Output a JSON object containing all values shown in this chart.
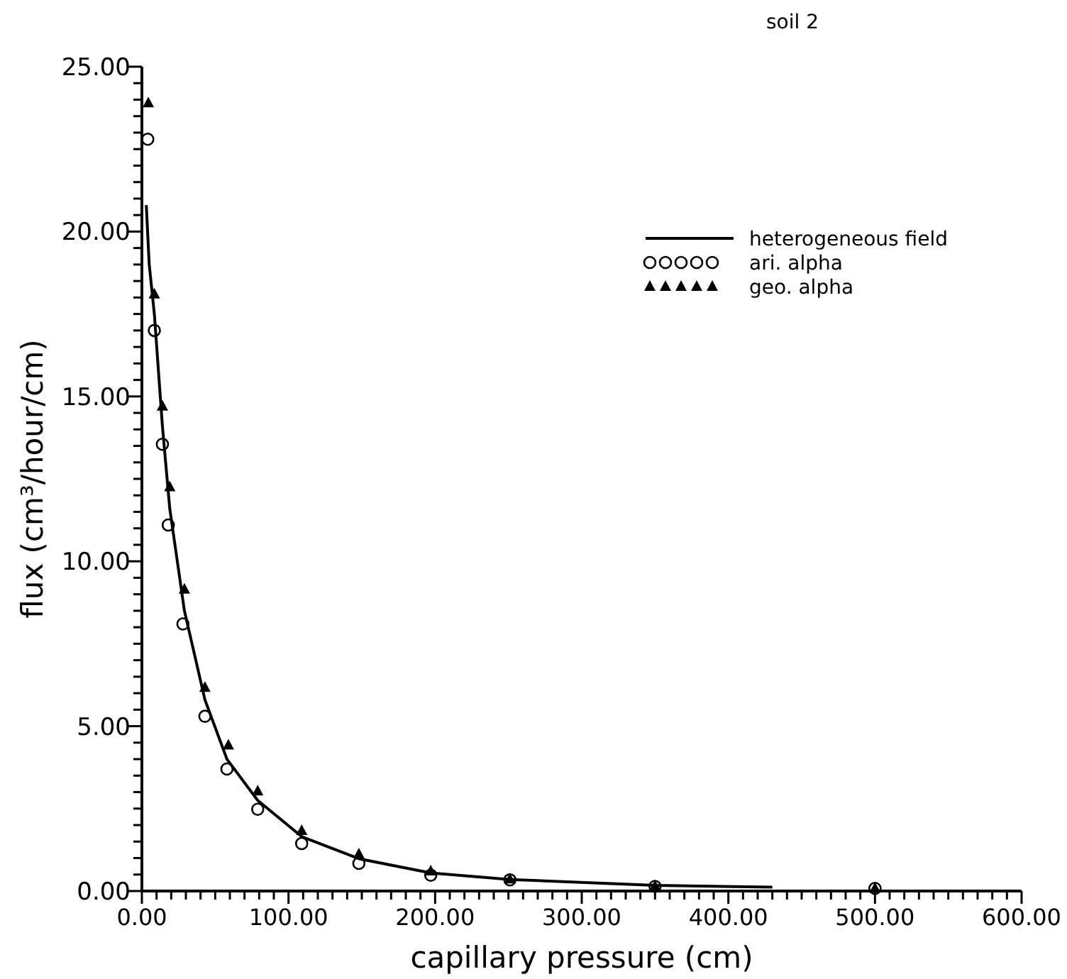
{
  "chart_data": {
    "type": "scatter",
    "xlabel": "capillary pressure (cm)",
    "ylabel": "flux (cm³/hour/cm)",
    "annotations": [
      "soil 2"
    ],
    "xlim": [
      0,
      600
    ],
    "ylim": [
      0,
      25
    ],
    "xticks": [
      {
        "value": 0,
        "label": "0.00"
      },
      {
        "value": 10,
        "label": null
      },
      {
        "value": 20,
        "label": null
      },
      {
        "value": 30,
        "label": null
      },
      {
        "value": 40,
        "label": null
      },
      {
        "value": 50,
        "label": null
      },
      {
        "value": 60,
        "label": null
      },
      {
        "value": 70,
        "label": null
      },
      {
        "value": 80,
        "label": null
      },
      {
        "value": 90,
        "label": null
      },
      {
        "value": 100,
        "label": "100.00"
      },
      {
        "value": 110,
        "label": null
      },
      {
        "value": 120,
        "label": null
      },
      {
        "value": 130,
        "label": null
      },
      {
        "value": 140,
        "label": null
      },
      {
        "value": 150,
        "label": null
      },
      {
        "value": 160,
        "label": null
      },
      {
        "value": 170,
        "label": null
      },
      {
        "value": 180,
        "label": null
      },
      {
        "value": 190,
        "label": null
      },
      {
        "value": 200,
        "label": "200.00"
      },
      {
        "value": 210,
        "label": null
      },
      {
        "value": 220,
        "label": null
      },
      {
        "value": 230,
        "label": null
      },
      {
        "value": 240,
        "label": null
      },
      {
        "value": 250,
        "label": null
      },
      {
        "value": 260,
        "label": null
      },
      {
        "value": 270,
        "label": null
      },
      {
        "value": 280,
        "label": null
      },
      {
        "value": 290,
        "label": null
      },
      {
        "value": 300,
        "label": "300.00"
      },
      {
        "value": 310,
        "label": null
      },
      {
        "value": 320,
        "label": null
      },
      {
        "value": 330,
        "label": null
      },
      {
        "value": 340,
        "label": null
      },
      {
        "value": 350,
        "label": null
      },
      {
        "value": 360,
        "label": null
      },
      {
        "value": 370,
        "label": null
      },
      {
        "value": 380,
        "label": null
      },
      {
        "value": 390,
        "label": null
      },
      {
        "value": 400,
        "label": "400.00"
      },
      {
        "value": 410,
        "label": null
      },
      {
        "value": 420,
        "label": null
      },
      {
        "value": 430,
        "label": null
      },
      {
        "value": 440,
        "label": null
      },
      {
        "value": 450,
        "label": null
      },
      {
        "value": 460,
        "label": null
      },
      {
        "value": 470,
        "label": null
      },
      {
        "value": 480,
        "label": null
      },
      {
        "value": 490,
        "label": null
      },
      {
        "value": 500,
        "label": "500.00"
      },
      {
        "value": 510,
        "label": null
      },
      {
        "value": 520,
        "label": null
      },
      {
        "value": 530,
        "label": null
      },
      {
        "value": 540,
        "label": null
      },
      {
        "value": 550,
        "label": null
      },
      {
        "value": 560,
        "label": null
      },
      {
        "value": 570,
        "label": null
      },
      {
        "value": 580,
        "label": null
      },
      {
        "value": 590,
        "label": null
      },
      {
        "value": 600,
        "label": "600.00"
      }
    ],
    "yticks": [
      {
        "value": 0,
        "label": "0.00"
      },
      {
        "value": 0.5,
        "label": null
      },
      {
        "value": 1,
        "label": null
      },
      {
        "value": 1.5,
        "label": null
      },
      {
        "value": 2,
        "label": null
      },
      {
        "value": 2.5,
        "label": null
      },
      {
        "value": 3,
        "label": null
      },
      {
        "value": 3.5,
        "label": null
      },
      {
        "value": 4,
        "label": null
      },
      {
        "value": 4.5,
        "label": null
      },
      {
        "value": 5,
        "label": "5.00"
      },
      {
        "value": 5.5,
        "label": null
      },
      {
        "value": 6,
        "label": null
      },
      {
        "value": 6.5,
        "label": null
      },
      {
        "value": 7,
        "label": null
      },
      {
        "value": 7.5,
        "label": null
      },
      {
        "value": 8,
        "label": null
      },
      {
        "value": 8.5,
        "label": null
      },
      {
        "value": 9,
        "label": null
      },
      {
        "value": 9.5,
        "label": null
      },
      {
        "value": 10,
        "label": "10.00"
      },
      {
        "value": 10.5,
        "label": null
      },
      {
        "value": 11,
        "label": null
      },
      {
        "value": 11.5,
        "label": null
      },
      {
        "value": 12,
        "label": null
      },
      {
        "value": 12.5,
        "label": null
      },
      {
        "value": 13,
        "label": null
      },
      {
        "value": 13.5,
        "label": null
      },
      {
        "value": 14,
        "label": null
      },
      {
        "value": 14.5,
        "label": null
      },
      {
        "value": 15,
        "label": "15.00"
      },
      {
        "value": 15.5,
        "label": null
      },
      {
        "value": 16,
        "label": null
      },
      {
        "value": 16.5,
        "label": null
      },
      {
        "value": 17,
        "label": null
      },
      {
        "value": 17.5,
        "label": null
      },
      {
        "value": 18,
        "label": null
      },
      {
        "value": 18.5,
        "label": null
      },
      {
        "value": 19,
        "label": null
      },
      {
        "value": 19.5,
        "label": null
      },
      {
        "value": 20,
        "label": "20.00"
      },
      {
        "value": 20.5,
        "label": null
      },
      {
        "value": 21,
        "label": null
      },
      {
        "value": 21.5,
        "label": null
      },
      {
        "value": 22,
        "label": null
      },
      {
        "value": 22.5,
        "label": null
      },
      {
        "value": 23,
        "label": null
      },
      {
        "value": 23.5,
        "label": null
      },
      {
        "value": 24,
        "label": null
      },
      {
        "value": 24.5,
        "label": null
      },
      {
        "value": 25,
        "label": "25.00"
      }
    ],
    "legend": "top right",
    "series": [
      {
        "name": "heterogeneous field",
        "type": "line",
        "marker": "none",
        "line_style": "solid",
        "color": "#000000",
        "x": [
          3,
          5,
          8.5,
          14,
          19,
          29,
          43,
          58,
          79,
          109,
          148,
          197,
          251,
          350,
          430
        ],
        "values": [
          20.8,
          19,
          17.5,
          14.1,
          11.6,
          8.5,
          5.8,
          4.0,
          2.75,
          1.65,
          0.98,
          0.55,
          0.35,
          0.17,
          0.12
        ]
      },
      {
        "name": "ari. alpha",
        "marker": "circle",
        "color": "#000000",
        "x": [
          4,
          8.5,
          14,
          18,
          28,
          43,
          58,
          79,
          109,
          148,
          197,
          251,
          350,
          500
        ],
        "values": [
          22.8,
          17.0,
          13.55,
          11.1,
          8.1,
          5.3,
          3.7,
          2.48,
          1.44,
          0.84,
          0.48,
          0.34,
          0.14,
          0.08
        ]
      },
      {
        "name": "geo. alpha",
        "marker": "triangle",
        "color": "#000000",
        "x": [
          4.4,
          8.5,
          14,
          19,
          29,
          43,
          59,
          79,
          109,
          148,
          197,
          251,
          350,
          500
        ],
        "values": [
          23.9,
          18.1,
          14.7,
          12.25,
          9.15,
          6.17,
          4.42,
          3.03,
          1.83,
          1.12,
          0.6,
          0.36,
          0.15,
          0.08
        ]
      }
    ]
  }
}
